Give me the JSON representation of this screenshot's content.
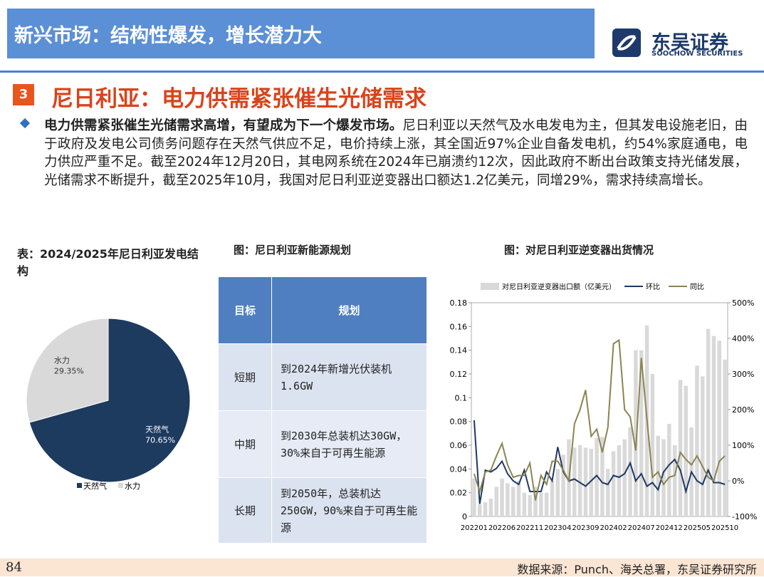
{
  "header": {
    "title": "新兴市场：结构性爆发，增长潜力大",
    "logo_name": "东吴证券",
    "logo_sub": "SOOCHOW SECURITIES"
  },
  "section": {
    "number": "3",
    "title": "尼日利亚：电力供需紧张催生光储需求"
  },
  "paragraph": {
    "bold": "电力供需紧张催生光储需求高增，有望成为下一个爆发市场。",
    "text": "尼日利亚以天然气及水电发电为主，但其发电设施老旧，由于政府及发电公司债务问题存在天然气供应不足，电价持续上涨，其全国近97%企业自备发电机，约54%家庭通电，电力供应严重不足。截至2024年12月20日，其电网系统在2024年已崩溃约12次，因此政府不断出台政策支持光储发展，光储需求不断提升，截至2025年10月，我国对尼日利亚逆变器出口额达1.2亿美元，同增29%，需求持续高增长。"
  },
  "table": {
    "title": "图：尼日利亚新能源规划",
    "header": [
      "目标",
      "规划"
    ],
    "rows": [
      [
        "短期",
        "到2024年新增光伏装机1.6GW"
      ],
      [
        "中期",
        "到2030年总装机达30GW，30%来自于可再生能源"
      ],
      [
        "长期",
        "到2050年，总装机达250GW，90%来自于可再生能源"
      ]
    ]
  },
  "footer": {
    "page": "84",
    "source": "数据来源：Punch、海关总署，东吴证券研究所"
  },
  "chart_data": [
    {
      "type": "pie",
      "title": "表：2024/2025年尼日利亚发电结构",
      "categories": [
        "天然气",
        "水力"
      ],
      "values": [
        70.65,
        29.35
      ],
      "value_labels": [
        "70.65%",
        "29.35%"
      ],
      "colors": [
        "#1d3a5f",
        "#d9d9d9"
      ]
    },
    {
      "type": "bar-line",
      "title": "图：对尼日利亚逆变器出货情况",
      "categories": [
        "202201",
        null,
        null,
        null,
        null,
        "202206",
        null,
        null,
        null,
        null,
        "202211",
        null,
        null,
        null,
        null,
        "202304",
        null,
        null,
        null,
        null,
        "202309",
        null,
        null,
        null,
        null,
        "202402",
        null,
        null,
        null,
        null,
        "202407",
        null,
        null,
        null,
        null,
        "202412",
        null,
        null,
        null,
        null,
        "202505",
        null,
        null,
        null,
        null,
        "202510"
      ],
      "series": [
        {
          "name": "对尼日利亚逆变器出口额（亿美元）",
          "type": "bar",
          "color": "#d9d9d9",
          "values": [
            0.032,
            0.01,
            0.012,
            0.015,
            0.025,
            0.032,
            0.028,
            0.025,
            0.03,
            0.02,
            0.018,
            0.025,
            0.02,
            0.02,
            0.03,
            0.04,
            0.052,
            0.065,
            0.058,
            0.06,
            0.058,
            0.057,
            0.066,
            0.067,
            0.04,
            0.055,
            0.06,
            0.065,
            0.075,
            0.14,
            0.14,
            0.161,
            0.12,
            0.068,
            0.065,
            0.078,
            0.06,
            0.115,
            0.11,
            0.075,
            0.127,
            0.118,
            0.158,
            0.152,
            0.148,
            0.132
          ]
        },
        {
          "name": "环比",
          "type": "line",
          "axis": "y2",
          "color": "#1f3864",
          "values": [
            170,
            -65,
            30,
            25,
            35,
            55,
            20,
            0,
            -10,
            30,
            -30,
            -30,
            -30,
            25,
            0,
            95,
            25,
            0,
            5,
            -5,
            -15,
            0,
            15,
            -5,
            -10,
            15,
            10,
            20,
            50,
            0,
            20,
            -15,
            -5,
            -25,
            25,
            45,
            60,
            30,
            -30,
            25,
            0,
            -10,
            30,
            -5,
            -5,
            -10
          ]
        },
        {
          "name": "同比",
          "type": "line",
          "axis": "y2",
          "color": "#8b8452",
          "values": [
            20,
            -30,
            25,
            30,
            70,
            105,
            45,
            10,
            15,
            15,
            50,
            -55,
            15,
            -10,
            55,
            55,
            30,
            0,
            160,
            200,
            255,
            125,
            145,
            80,
            150,
            385,
            395,
            200,
            180,
            85,
            345,
            175,
            10,
            25,
            -10,
            10,
            15,
            80,
            60,
            45,
            70,
            40,
            10,
            0,
            55,
            70
          ]
        }
      ],
      "ylim": [
        0,
        0.18
      ],
      "yticks": [
        0,
        0.02,
        0.04,
        0.06,
        0.08,
        0.1,
        0.12,
        0.14,
        0.16,
        0.18
      ],
      "y2lim": [
        -100,
        500
      ],
      "y2ticks": [
        {
          "value": -100,
          "label": "-100%"
        },
        {
          "value": 0,
          "label": "0%"
        },
        {
          "value": 100,
          "label": "100%"
        },
        {
          "value": 200,
          "label": "200%"
        },
        {
          "value": 300,
          "label": "300%"
        },
        {
          "value": 400,
          "label": "400%"
        },
        {
          "value": 500,
          "label": "500%"
        }
      ]
    }
  ]
}
